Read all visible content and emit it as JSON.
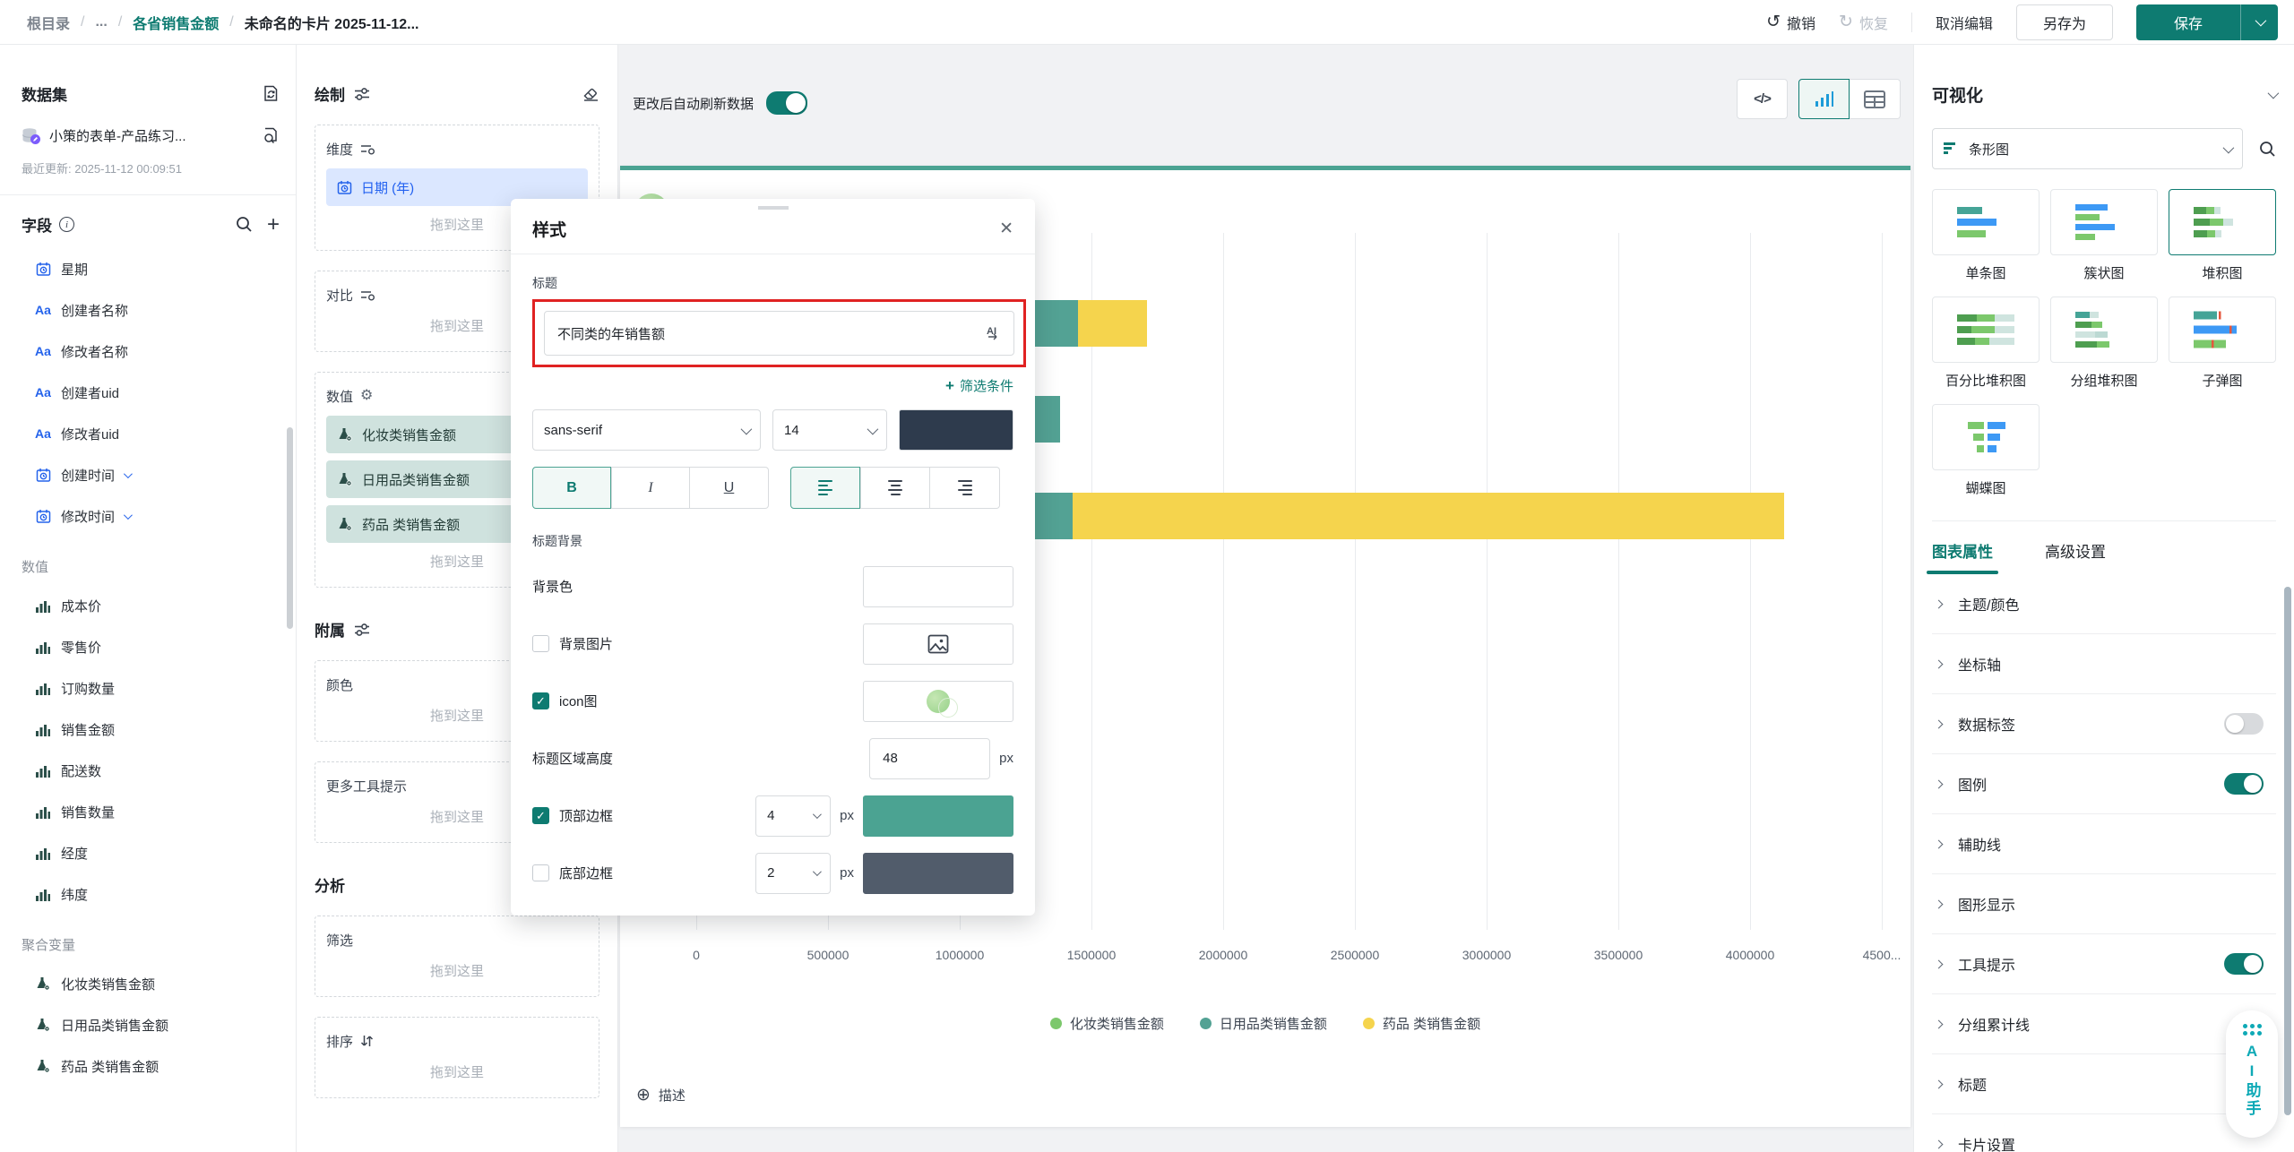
{
  "theme": {
    "brand_teal": "#0E7B71",
    "card_top_border": "#4BA392",
    "highlight_red": "#E02222",
    "chip_blue_bg": "#DBE7FF",
    "chip_teal_bg": "#CFE2DE"
  },
  "topbar": {
    "breadcrumb": [
      {
        "label": "根目录",
        "style": "muted",
        "clickable": true
      },
      {
        "label": "...",
        "style": "muted",
        "clickable": true
      },
      {
        "label": "各省销售金额",
        "style": "link",
        "clickable": true
      },
      {
        "label": "未命名的卡片 2025-11-12...",
        "style": "current",
        "clickable": false
      }
    ],
    "actions": {
      "undo": "撤销",
      "redo": "恢复",
      "cancel_edit": "取消编辑",
      "save_as": "另存为",
      "save": "保存"
    }
  },
  "dataset_panel": {
    "title": "数据集",
    "dataset_name": "小策的表单-产品练习...",
    "updated": "最近更新: 2025-11-12 00:09:51",
    "fields_title": "字段",
    "groups": [
      {
        "label": "",
        "items": [
          {
            "icon": "calendar",
            "label": "星期"
          },
          {
            "icon": "text",
            "label": "创建者名称"
          },
          {
            "icon": "text",
            "label": "修改者名称"
          },
          {
            "icon": "text",
            "label": "创建者uid"
          },
          {
            "icon": "text",
            "label": "修改者uid"
          },
          {
            "icon": "calendar",
            "label": "创建时间",
            "chevron": true
          },
          {
            "icon": "calendar",
            "label": "修改时间",
            "chevron": true
          }
        ]
      },
      {
        "label": "数值",
        "items": [
          {
            "icon": "bar",
            "label": "成本价"
          },
          {
            "icon": "bar",
            "label": "零售价"
          },
          {
            "icon": "bar",
            "label": "订购数量"
          },
          {
            "icon": "bar",
            "label": "销售金额"
          },
          {
            "icon": "bar",
            "label": "配送数"
          },
          {
            "icon": "bar",
            "label": "销售数量"
          },
          {
            "icon": "bar",
            "label": "经度"
          },
          {
            "icon": "bar",
            "label": "纬度"
          }
        ]
      },
      {
        "label": "聚合变量",
        "items": [
          {
            "icon": "flask",
            "label": "化妆类销售金额"
          },
          {
            "icon": "flask",
            "label": "日用品类销售金额"
          },
          {
            "icon": "flask",
            "label": "药品 类销售金额"
          }
        ]
      }
    ]
  },
  "draw_panel": {
    "title": "绘制",
    "drop_placeholder": "拖到这里",
    "dimension_label": "维度",
    "dimension_chip": "日期 (年)",
    "compare_label": "对比",
    "values_label": "数值",
    "value_chips": [
      "化妆类销售金额",
      "日用品类销售金额",
      "药品 类销售金额"
    ],
    "attach_title": "附属",
    "color_label": "颜色",
    "tooltip_label": "更多工具提示",
    "analysis_title": "分析",
    "filter_label": "筛选",
    "sort_label": "排序"
  },
  "canvas": {
    "auto_refresh": "更改后自动刷新数据",
    "card_title": "未命名的卡片 2025-11-12 15:35",
    "description": "描述"
  },
  "style_dialog": {
    "title": "样式",
    "field_title_label": "标题",
    "title_value": "不同类的年销售额",
    "add_filter": "筛选条件",
    "font_family": "sans-serif",
    "font_size": "14",
    "bold": "B",
    "italic": "I",
    "underline": "U",
    "title_bg_label": "标题背景",
    "bg_color_label": "背景色",
    "bg_image_label": "背景图片",
    "icon_label": "icon图",
    "area_height_label": "标题区域高度",
    "area_height_value": "48",
    "unit": "px",
    "top_border_label": "顶部边框",
    "top_border_width": "4",
    "bottom_border_label": "底部边框",
    "bottom_border_width": "2",
    "checkbox_states": {
      "bg_image": false,
      "icon": true,
      "top_border": true,
      "bottom_border": false
    },
    "colors": {
      "font": "#2E3B4D",
      "top_border": "#4BA392",
      "bottom_border": "#515C6B"
    }
  },
  "viz_panel": {
    "title": "可视化",
    "type_select": "条形图",
    "types": [
      {
        "label": "单条图",
        "selected": false
      },
      {
        "label": "簇状图",
        "selected": false
      },
      {
        "label": "堆积图",
        "selected": true
      },
      {
        "label": "百分比堆积图",
        "selected": false
      },
      {
        "label": "分组堆积图",
        "selected": false
      },
      {
        "label": "子弹图",
        "selected": false
      },
      {
        "label": "蝴蝶图",
        "selected": false
      }
    ],
    "tabs": [
      {
        "label": "图表属性",
        "active": true
      },
      {
        "label": "高级设置",
        "active": false
      }
    ],
    "accordion": [
      {
        "label": "主题/颜色"
      },
      {
        "label": "坐标轴"
      },
      {
        "label": "数据标签",
        "toggle": "off"
      },
      {
        "label": "图例",
        "toggle": "on"
      },
      {
        "label": "辅助线"
      },
      {
        "label": "图形显示"
      },
      {
        "label": "工具提示",
        "toggle": "on"
      },
      {
        "label": "分组累计线"
      },
      {
        "label": "标题"
      },
      {
        "label": "卡片设置"
      }
    ]
  },
  "ai_assistant": {
    "label": "AI助手"
  },
  "chart_data": {
    "type": "bar",
    "orientation": "horizontal",
    "stacked": true,
    "title": "未命名的卡片 2025-11-12 15:35",
    "x_axis": {
      "tick_labels": [
        "0",
        "500000",
        "1000000",
        "1500000",
        "2000000",
        "2500000",
        "3000000",
        "3500000",
        "4000000",
        "4500..."
      ],
      "tick_values": [
        0,
        500000,
        1000000,
        1500000,
        2000000,
        2500000,
        3000000,
        3500000,
        4000000,
        4500000
      ],
      "max": 4500000,
      "grid": true
    },
    "rows": 3,
    "y_categories_visible": false,
    "values_estimated_from_pixels": true,
    "series": [
      {
        "name": "化妆类销售金额",
        "color": "#7CC86C",
        "values": [
          1200000,
          1200000,
          1200000
        ],
        "note": "left portion occluded by style dialog"
      },
      {
        "name": "日用品类销售金额",
        "color": "#53A294",
        "values": [
          250000,
          180000,
          230000
        ]
      },
      {
        "name": "药品 类销售金额",
        "color": "#F5D44D",
        "values": [
          260000,
          0,
          2700000
        ]
      }
    ],
    "legend_position": "bottom"
  }
}
